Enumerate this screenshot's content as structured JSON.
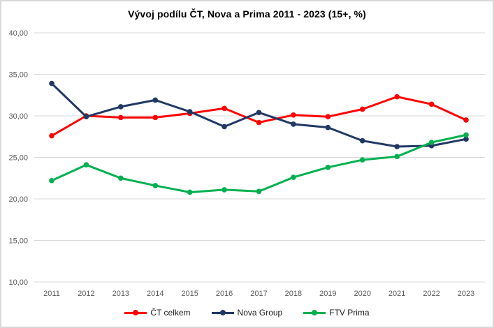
{
  "window": {
    "background_color": "#ffffff",
    "border_color": "#d9d9d9"
  },
  "chart_data": {
    "type": "line",
    "title": "Vývoj podílu ČT, Nova a Prima 2011 - 2023 (15+, %)",
    "categories": [
      "2011",
      "2012",
      "2013",
      "2014",
      "2015",
      "2016",
      "2017",
      "2018",
      "2019",
      "2020",
      "2021",
      "2022",
      "2023"
    ],
    "series": [
      {
        "name": "ČT celkem",
        "color": "#ff0000",
        "values": [
          27.6,
          30.0,
          29.8,
          29.8,
          30.3,
          30.9,
          29.2,
          30.1,
          29.9,
          30.8,
          32.3,
          31.4,
          29.5
        ]
      },
      {
        "name": "Nova Group",
        "color": "#203864",
        "values": [
          33.9,
          29.9,
          31.1,
          31.9,
          30.5,
          28.7,
          30.4,
          29.0,
          28.6,
          27.0,
          26.3,
          26.4,
          27.2
        ]
      },
      {
        "name": "FTV Prima",
        "color": "#00b050",
        "values": [
          22.2,
          24.1,
          22.5,
          21.6,
          20.8,
          21.1,
          20.9,
          22.6,
          23.8,
          24.7,
          25.1,
          26.8,
          27.7
        ]
      }
    ],
    "xlabel": "",
    "ylabel": "",
    "ylim": [
      10,
      40
    ],
    "ytick_values": [
      40,
      35,
      30,
      25,
      20,
      15,
      10
    ],
    "ytick_labels": [
      "40,00",
      "35,00",
      "30,00",
      "25,00",
      "20,00",
      "15,00",
      "10,00"
    ],
    "grid": true,
    "grid_color": "#d9d9d9",
    "axis_label_color": "#595959",
    "legend_position": "bottom"
  }
}
